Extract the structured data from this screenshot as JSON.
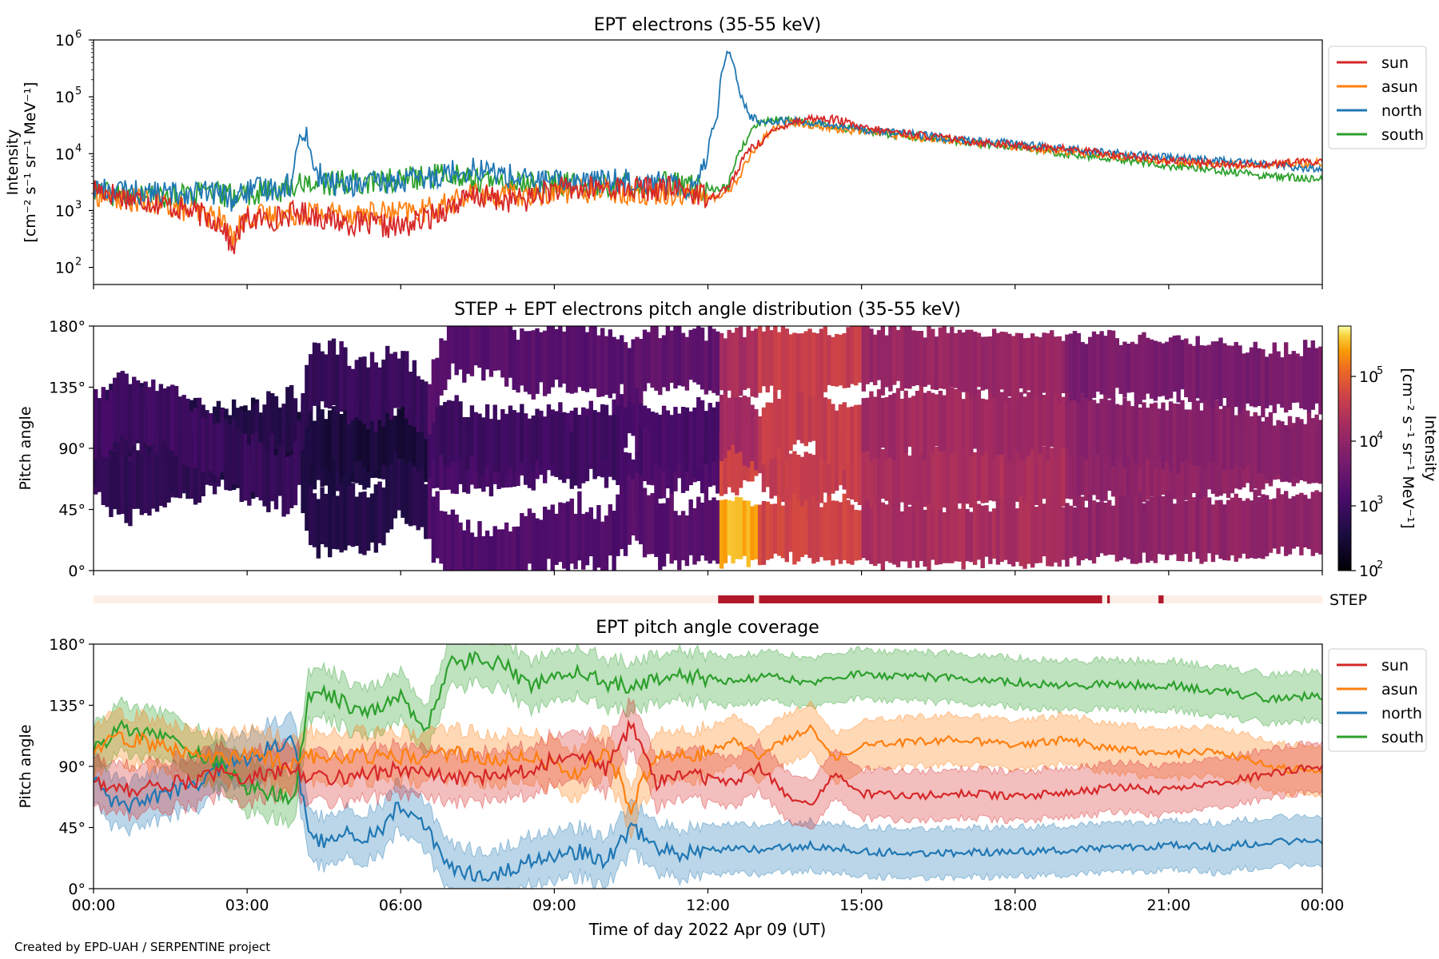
{
  "figure": {
    "credit": "Created by EPD-UAH / SERPENTINE project",
    "xlabel": "Time of day 2022 Apr 09 (UT)",
    "xtick_labels": [
      "00:00",
      "03:00",
      "06:00",
      "09:00",
      "12:00",
      "15:00",
      "18:00",
      "21:00",
      "00:00"
    ]
  },
  "colors": {
    "sun": "#d62728",
    "asun": "#ff7f0e",
    "north": "#1f77b4",
    "south": "#2ca02c",
    "step_on": "#b2182b",
    "step_off": "#fdeee7"
  },
  "chart_data": [
    {
      "type": "line",
      "title": "EPT electrons (35-55 keV)",
      "ylabel": "Intensity",
      "ylabel2": "[cm⁻² s⁻¹ sr⁻¹ MeV⁻¹]",
      "yscale": "log",
      "ylim": [
        50,
        1000000
      ],
      "yticks": [
        100,
        1000,
        10000,
        100000,
        1000000
      ],
      "ytick_labels": [
        [
          "10",
          "2"
        ],
        [
          "10",
          "3"
        ],
        [
          "10",
          "4"
        ],
        [
          "10",
          "5"
        ],
        [
          "10",
          "6"
        ]
      ],
      "xlim_hours": [
        0,
        24
      ],
      "legend": "outside-right",
      "x_hours": [
        0,
        0.5,
        1,
        1.5,
        2,
        2.5,
        2.7,
        3,
        3.5,
        3.9,
        4.1,
        4.3,
        4.6,
        5,
        5.5,
        6,
        6.5,
        7,
        7.5,
        8,
        8.5,
        9,
        9.5,
        10,
        10.5,
        11,
        11.5,
        11.8,
        12,
        12.1,
        12.2,
        12.4,
        12.6,
        12.8,
        13,
        13.3,
        13.6,
        14,
        14.5,
        15,
        16,
        17,
        18,
        19,
        20,
        21,
        22,
        23,
        24
      ],
      "series": [
        {
          "name": "sun",
          "values": [
            2500,
            1800,
            1500,
            1200,
            900,
            600,
            180,
            700,
            700,
            900,
            900,
            850,
            700,
            600,
            550,
            500,
            700,
            1200,
            1800,
            1500,
            1600,
            2400,
            2300,
            2600,
            2400,
            2400,
            2400,
            1900,
            1800,
            1800,
            2000,
            2600,
            5000,
            12000,
            15000,
            25000,
            35000,
            42000,
            40000,
            28000,
            22000,
            17000,
            14000,
            12000,
            9500,
            7500,
            6500,
            6500,
            7500
          ]
        },
        {
          "name": "asun",
          "values": [
            2000,
            1600,
            1500,
            1200,
            900,
            700,
            300,
            800,
            800,
            900,
            950,
            950,
            900,
            900,
            900,
            900,
            1000,
            1400,
            1900,
            1900,
            1800,
            2200,
            2200,
            2300,
            2100,
            2100,
            2100,
            1800,
            1700,
            1600,
            1800,
            2200,
            3500,
            8000,
            15000,
            28000,
            35000,
            32000,
            27000,
            25000,
            20000,
            16000,
            13000,
            11000,
            9000,
            7500,
            6500,
            6500,
            7000
          ]
        },
        {
          "name": "north",
          "values": [
            2500,
            2200,
            2000,
            2000,
            2100,
            2000,
            1500,
            2200,
            2500,
            3000,
            28000,
            5000,
            3000,
            2800,
            3000,
            3300,
            3600,
            5000,
            5500,
            4200,
            3400,
            3200,
            3300,
            3300,
            3500,
            3200,
            2500,
            3000,
            10000,
            30000,
            50000,
            650000,
            120000,
            45000,
            38000,
            38000,
            38000,
            35000,
            32000,
            27000,
            22000,
            17000,
            15000,
            12000,
            10000,
            8500,
            7500,
            6500,
            5000
          ]
        },
        {
          "name": "south",
          "values": [
            2000,
            1800,
            1800,
            1800,
            2000,
            1900,
            1800,
            2000,
            2100,
            2600,
            3200,
            3000,
            3000,
            3200,
            3200,
            3500,
            3800,
            4500,
            3500,
            2900,
            3000,
            3000,
            2900,
            2800,
            2900,
            3000,
            2800,
            2600,
            2500,
            2400,
            2300,
            2600,
            9000,
            20000,
            35000,
            40000,
            38000,
            34000,
            30000,
            25000,
            20000,
            16000,
            13000,
            10000,
            8000,
            6000,
            5000,
            4000,
            3500
          ]
        }
      ]
    },
    {
      "type": "heatmap",
      "title": "STEP + EPT electrons pitch angle distribution (35-55 keV)",
      "ylabel": "Pitch angle",
      "ylim": [
        0,
        180
      ],
      "ytick_labels": [
        "0°",
        "45°",
        "90°",
        "135°",
        "180°"
      ],
      "colorbar": {
        "label": "Intensity",
        "label2": "[cm⁻² s⁻¹ sr⁻¹ MeV⁻¹]",
        "scale": "log",
        "range": [
          100,
          600000
        ],
        "tick_labels": [
          [
            "10",
            "2"
          ],
          [
            "10",
            "3"
          ],
          [
            "10",
            "4"
          ],
          [
            "10",
            "5"
          ]
        ]
      },
      "band_centers_from": "ept_coverage",
      "band_halfwidth_deg": 22,
      "blocks": [
        {
          "t0": 0,
          "t1": 2.5,
          "band_log_intensity": [
            2.9,
            2.7,
            2.8,
            3.0
          ]
        },
        {
          "t0": 2.5,
          "t1": 6.5,
          "band_log_intensity": [
            2.6,
            2.5,
            2.7,
            2.9
          ]
        },
        {
          "t0": 6.5,
          "t1": 10.5,
          "band_log_intensity": [
            3.1,
            3.0,
            3.2,
            3.3
          ]
        },
        {
          "t0": 10.5,
          "t1": 12.2,
          "band_log_intensity": [
            3.2,
            3.1,
            3.3,
            3.4
          ]
        },
        {
          "t0": 12.2,
          "t1": 13.0,
          "band_log_intensity": [
            4.7,
            4.2,
            5.5,
            4.3
          ]
        },
        {
          "t0": 13.0,
          "t1": 15.0,
          "band_log_intensity": [
            4.6,
            4.6,
            4.7,
            4.6
          ]
        },
        {
          "t0": 15.0,
          "t1": 19.0,
          "band_log_intensity": [
            4.3,
            4.2,
            4.3,
            4.1
          ]
        },
        {
          "t0": 19.0,
          "t1": 24,
          "band_log_intensity": [
            4.0,
            3.9,
            4.0,
            3.7
          ]
        }
      ]
    },
    {
      "type": "bar",
      "label": "STEP",
      "segments_hours": [
        [
          12.2,
          12.9
        ],
        [
          13.0,
          19.7
        ],
        [
          19.8,
          19.85
        ],
        [
          20.8,
          20.9
        ]
      ]
    },
    {
      "type": "line",
      "title": "EPT pitch angle coverage",
      "ylabel": "Pitch angle",
      "ylim": [
        0,
        180
      ],
      "ytick_labels": [
        "0°",
        "45°",
        "90°",
        "135°",
        "180°"
      ],
      "xlim_hours": [
        0,
        24
      ],
      "legend": "outside-right",
      "band_halfwidth_deg": 18,
      "x_hours": [
        0,
        0.5,
        1,
        1.5,
        2,
        2.5,
        3,
        3.5,
        3.9,
        4.2,
        4.5,
        5,
        5.5,
        6,
        6.5,
        7,
        7.5,
        8,
        8.5,
        9,
        9.5,
        10,
        10.5,
        11,
        11.5,
        12,
        12.5,
        13,
        13.5,
        14,
        14.5,
        15,
        16,
        17,
        18,
        19,
        20,
        21,
        22,
        23,
        24
      ],
      "series": [
        {
          "name": "sun",
          "values": [
            80,
            72,
            75,
            77,
            80,
            85,
            82,
            85,
            88,
            83,
            82,
            83,
            85,
            88,
            85,
            80,
            82,
            85,
            88,
            95,
            100,
            88,
            120,
            78,
            85,
            82,
            78,
            90,
            70,
            60,
            85,
            70,
            68,
            70,
            68,
            70,
            75,
            72,
            78,
            85,
            90
          ]
        },
        {
          "name": "asun",
          "values": [
            100,
            112,
            108,
            103,
            98,
            95,
            98,
            95,
            92,
            97,
            98,
            98,
            96,
            97,
            98,
            100,
            97,
            96,
            98,
            90,
            84,
            105,
            60,
            100,
            98,
            100,
            108,
            98,
            110,
            118,
            95,
            105,
            108,
            110,
            105,
            110,
            102,
            100,
            100,
            90,
            85
          ]
        },
        {
          "name": "north",
          "values": [
            80,
            60,
            65,
            72,
            75,
            90,
            95,
            105,
            110,
            40,
            35,
            40,
            38,
            62,
            45,
            15,
            10,
            12,
            20,
            25,
            28,
            20,
            45,
            30,
            25,
            28,
            30,
            28,
            30,
            32,
            30,
            28,
            26,
            27,
            27,
            28,
            30,
            32,
            30,
            35,
            35
          ]
        },
        {
          "name": "south",
          "values": [
            100,
            120,
            115,
            110,
            100,
            92,
            75,
            70,
            65,
            140,
            145,
            135,
            130,
            140,
            120,
            165,
            170,
            165,
            150,
            155,
            160,
            150,
            150,
            155,
            158,
            155,
            152,
            156,
            155,
            150,
            155,
            158,
            156,
            155,
            152,
            150,
            150,
            150,
            145,
            140,
            142
          ]
        }
      ]
    }
  ]
}
